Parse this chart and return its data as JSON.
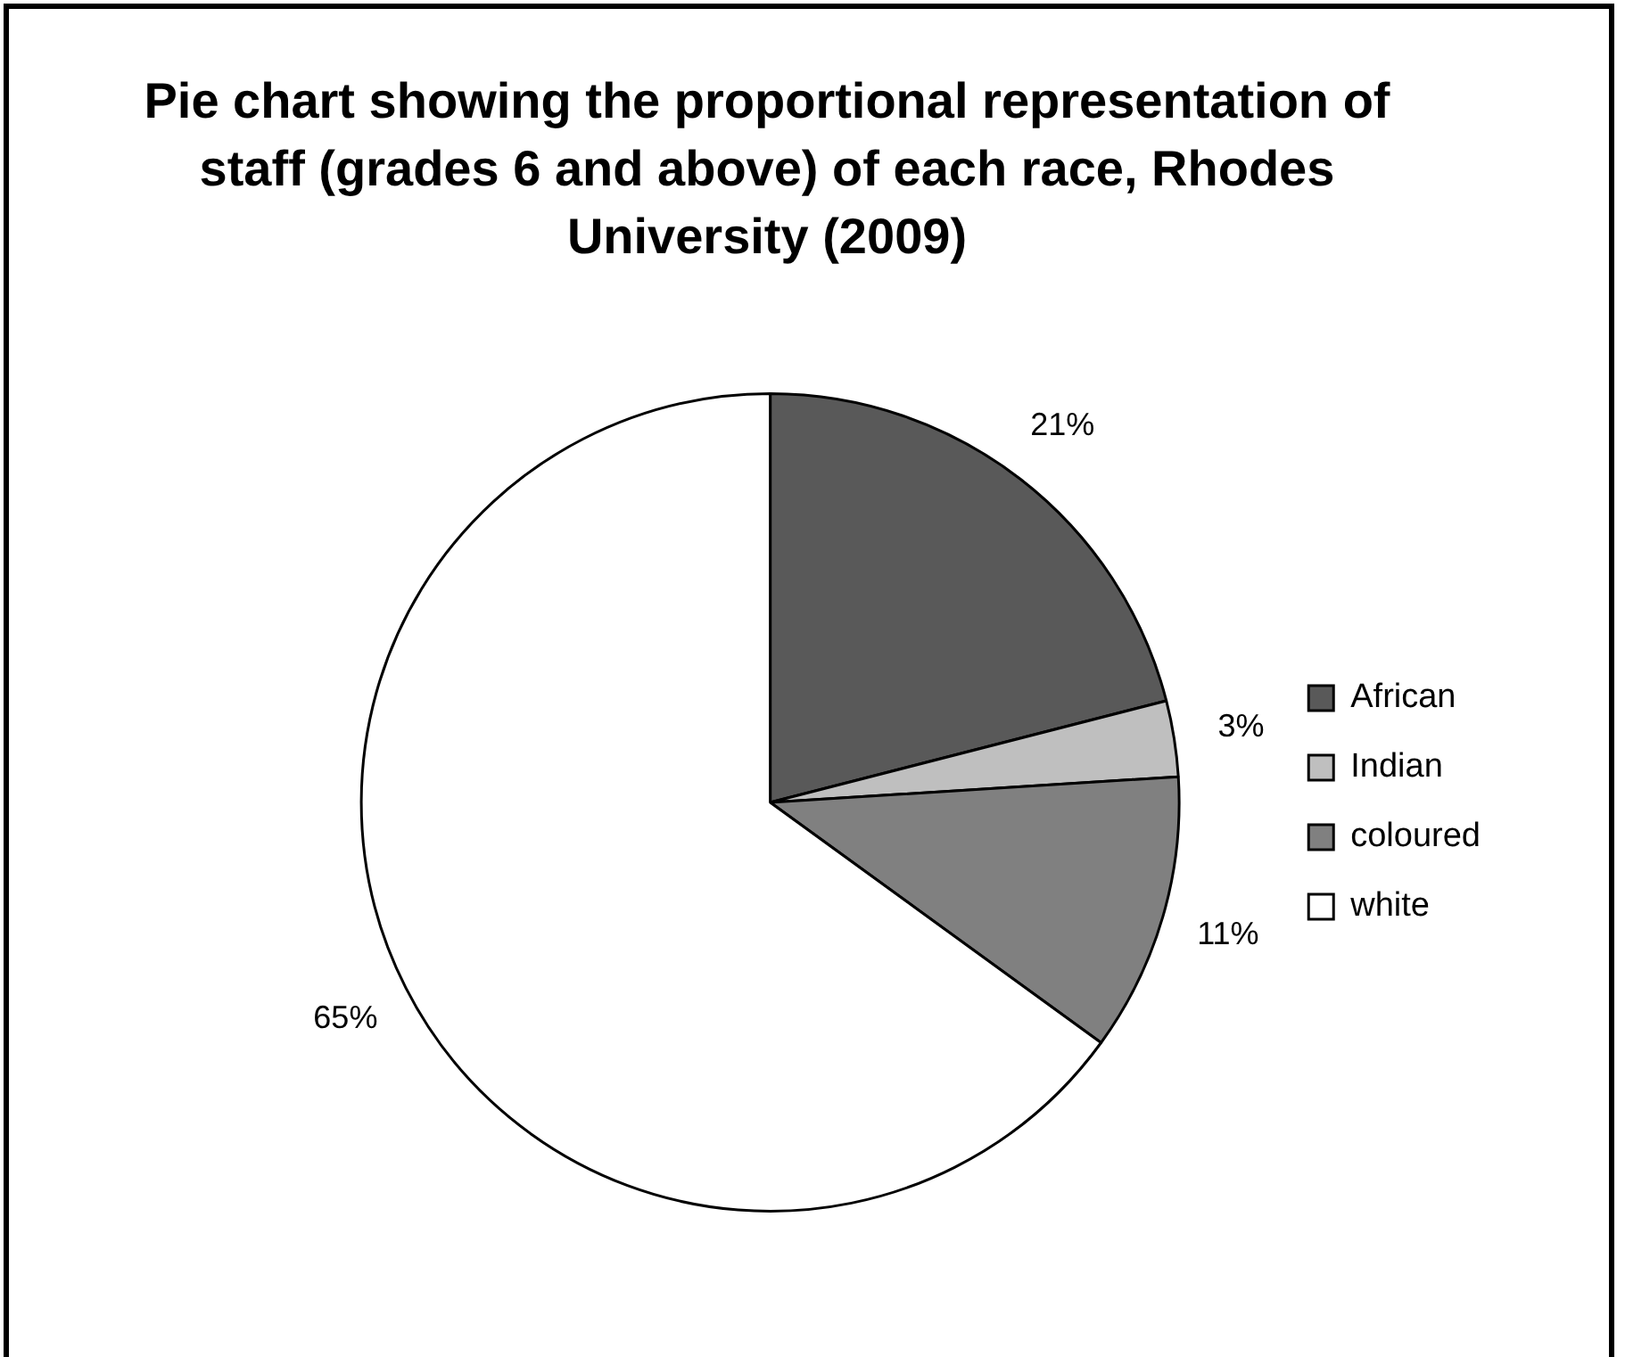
{
  "chart_data": {
    "type": "pie",
    "title": "Pie chart showing the proportional representation of staff (grades 6 and above) of each race, Rhodes University (2009)",
    "categories": [
      "African",
      "Indian",
      "coloured",
      "white"
    ],
    "values": [
      21,
      3,
      11,
      65
    ],
    "value_labels": [
      "21%",
      "3%",
      "11%",
      "65%"
    ],
    "colors": [
      "#595959",
      "#bfbfbf",
      "#808080",
      "#ffffff"
    ],
    "legend": "right"
  }
}
